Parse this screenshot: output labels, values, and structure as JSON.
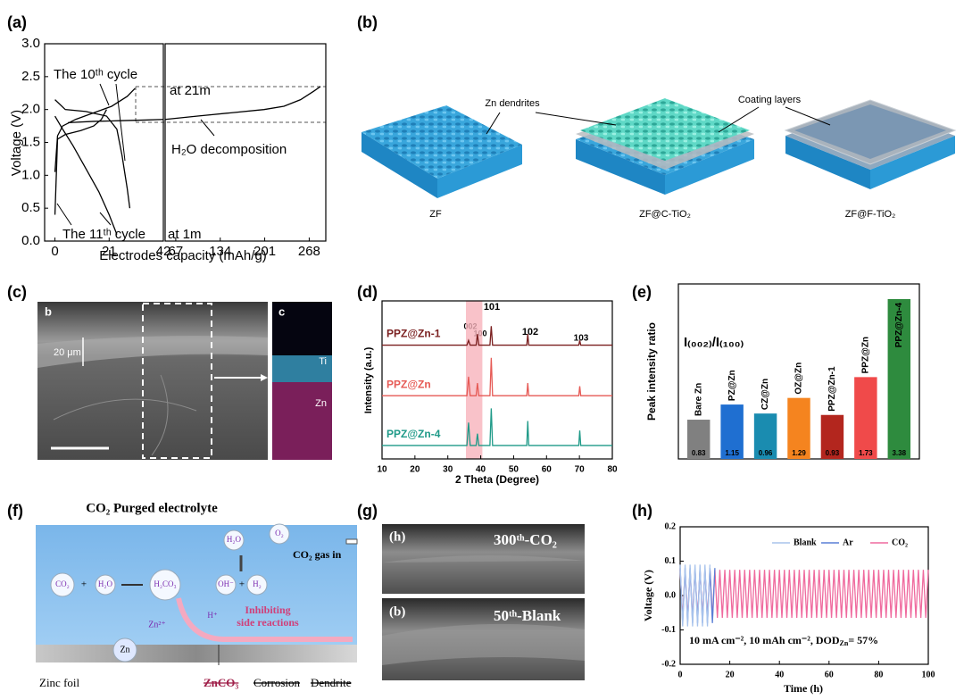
{
  "panel_labels": [
    "(a)",
    "(b)",
    "(c)",
    "(d)",
    "(e)",
    "(f)",
    "(g)",
    "(h)"
  ],
  "panel_b": {
    "labels": [
      "Zn dendrites",
      "Coating layers"
    ],
    "samples": [
      "ZF",
      "ZF@C-TiO₂",
      "ZF@F-TiO₂"
    ]
  },
  "panel_c": {
    "labels": [
      "b",
      "c",
      "20 μm",
      "Ti",
      "Zn"
    ]
  },
  "panel_f": {
    "title": "CO₂ Purged electrolyte",
    "species": [
      "CO₂",
      "H₂O",
      "H₂CO₃",
      "H₂O",
      "O₂",
      "OH⁻",
      "H₂",
      "H⁺",
      "Zn²⁺",
      "Zn"
    ],
    "gas": "CO₂ gas in",
    "note": [
      "Inhibiting",
      "side reactions"
    ],
    "foil": [
      "Zinc foil",
      "ZnCO₃",
      "Corrosion",
      "Dendrite"
    ]
  },
  "panel_g": {
    "labels": [
      "(h)",
      "300ᵗʰ-CO₂",
      "(b)",
      "50ᵗʰ-Blank"
    ]
  },
  "chart_data": [
    {
      "type": "line",
      "xlabel": "Electrodes capacity (mAh/g)",
      "ylabel": "Voltage (V)",
      "xlim": [
        -4,
        42
      ],
      "ylim": [
        0,
        3
      ],
      "xticks": [
        0,
        21,
        42
      ],
      "yticks": [
        {
          "value": 0,
          "label": "0.0"
        },
        0.5,
        {
          "value": 1,
          "label": "1.0"
        },
        1.5,
        {
          "value": 2,
          "label": "2.0"
        },
        2.5,
        {
          "value": 3,
          "label": "3.0"
        }
      ],
      "annotations": [
        "The 10ᵗʰ cycle",
        "at 21m",
        "H₂O decomposition",
        "The 11ᵗʰ cycle",
        "at 1m"
      ],
      "series": [
        {
          "color": "#000000",
          "x": [
            0,
            1,
            3,
            8,
            15,
            22,
            28,
            31
          ],
          "values": [
            1.05,
            1.6,
            1.75,
            1.85,
            1.95,
            2.05,
            2.2,
            2.32
          ]
        },
        {
          "color": "#000000",
          "x": [
            0,
            4,
            12,
            20,
            24,
            26,
            28,
            29
          ],
          "values": [
            2.15,
            2.0,
            1.97,
            1.9,
            1.7,
            1.3,
            0.8,
            0.5
          ]
        },
        {
          "color": "#000000",
          "x": [
            0,
            1,
            4,
            10,
            15,
            18,
            20
          ],
          "values": [
            0.4,
            1.55,
            1.62,
            1.68,
            1.75,
            1.85,
            2.0
          ]
        },
        {
          "color": "#000000",
          "x": [
            0,
            3,
            7,
            12,
            17,
            21,
            24
          ],
          "values": [
            1.9,
            1.7,
            1.45,
            1.1,
            0.75,
            0.4,
            0.1
          ]
        },
        {
          "color": "#000000",
          "x": [
            5,
            15,
            25,
            35,
            42
          ],
          "values": [
            1.8,
            1.82,
            1.83,
            1.84,
            1.85
          ]
        }
      ]
    },
    {
      "type": "line",
      "xlim": [
        51,
        293
      ],
      "ylim": [
        0,
        3
      ],
      "xticks": [
        67,
        134,
        201,
        268
      ],
      "series": [
        {
          "color": "#000000",
          "x": [
            51,
            100,
            150,
            200,
            230,
            255,
            275,
            285
          ],
          "values": [
            1.85,
            1.9,
            1.95,
            2.0,
            2.05,
            2.15,
            2.28,
            2.35
          ]
        }
      ]
    },
    {
      "type": "line",
      "xlabel": "2 Theta (Degree)",
      "ylabel": "Intensity (a.u.)",
      "xlim": [
        10,
        80
      ],
      "ylim": [
        0,
        10
      ],
      "xticks": [
        10,
        20,
        30,
        40,
        50,
        60,
        70,
        80
      ],
      "highlight": [
        35.5,
        40.5
      ],
      "highlight_color": "#f7b3bb",
      "annotations": [
        "002",
        "100",
        "101",
        "102",
        "103"
      ],
      "x": [
        10,
        35.8,
        36.3,
        36.8,
        38.6,
        39.0,
        39.4,
        42.8,
        43.2,
        43.6,
        54.0,
        54.3,
        54.6,
        69.8,
        70.1,
        70.4,
        80
      ],
      "series": [
        {
          "name": "PPZ@Zn-1",
          "color": "#7a1f1f",
          "values": [
            7.2,
            7.2,
            7.5,
            7.2,
            7.2,
            7.9,
            7.2,
            7.2,
            8.4,
            7.2,
            7.2,
            7.9,
            7.2,
            7.2,
            7.5,
            7.2,
            7.2
          ]
        },
        {
          "name": "PPZ@Zn",
          "color": "#e65a55",
          "values": [
            4,
            4,
            5.2,
            4,
            4,
            4.8,
            4,
            4,
            6.4,
            4,
            4,
            4.8,
            4,
            4,
            4.6,
            4,
            4
          ]
        },
        {
          "name": "PPZ@Zn-4",
          "color": "#1f9a88",
          "values": [
            0.85,
            0.85,
            2.3,
            0.85,
            0.85,
            1.6,
            0.85,
            0.85,
            3.2,
            0.85,
            0.85,
            2.4,
            0.85,
            0.85,
            1.8,
            0.85,
            0.85
          ]
        }
      ]
    },
    {
      "type": "bar",
      "ylabel": "Peak intensity ratio",
      "annotation": "I₍₀₀₂₎/I₍₁₀₀₎",
      "ylim": [
        0,
        3.7
      ],
      "categories": [
        "Bare Zn",
        "PZ@Zn",
        "CZ@Zn",
        "OZ@Zn",
        "PPZ@Zn-1",
        "PPZ@Zn",
        "PPZ@Zn-4"
      ],
      "values": [
        0.83,
        1.15,
        0.96,
        1.29,
        0.93,
        1.73,
        3.38
      ],
      "colors": [
        "#808080",
        "#1f6fd1",
        "#1a8cb0",
        "#f5841f",
        "#b3261e",
        "#f04a4a",
        "#2e8b3e"
      ]
    },
    {
      "type": "line",
      "xlabel": "Time (h)",
      "ylabel": "Voltage (V)",
      "xlim": [
        0,
        100
      ],
      "ylim": [
        -0.2,
        0.2
      ],
      "xticks": [
        0,
        20,
        40,
        60,
        80,
        100
      ],
      "yticks": [
        -0.2,
        -0.1,
        {
          "value": 0,
          "label": "0.0"
        },
        0.1,
        0.2
      ],
      "legend": "upper right",
      "annotation_parts": [
        "10 mA cm⁻², 10 mAh cm⁻², DOD",
        "Zn",
        "= 57%"
      ],
      "x": [
        0,
        1,
        2,
        3,
        4,
        5,
        6,
        7,
        8,
        9,
        10,
        11,
        12,
        13,
        14,
        15,
        16,
        17,
        18,
        19,
        20,
        21,
        22,
        23,
        24,
        25,
        26,
        27,
        28,
        29,
        30,
        31,
        32,
        33,
        34,
        35,
        36,
        37,
        38,
        39,
        40,
        41,
        42,
        43,
        44,
        45,
        46,
        47,
        48,
        49,
        50,
        51,
        52,
        53,
        54,
        55,
        56,
        57,
        58,
        59,
        60,
        61,
        62,
        63,
        64,
        65,
        66,
        67,
        68,
        69,
        70,
        71,
        72,
        73,
        74,
        75,
        76,
        77,
        78,
        79,
        80,
        81,
        82,
        83,
        84,
        85,
        86,
        87,
        88,
        89,
        90,
        91,
        92,
        93,
        94,
        95,
        96,
        97,
        98,
        99,
        100
      ],
      "series": [
        {
          "name": "Blank",
          "color": "#a8c3ec",
          "values": [
            0.09,
            -0.09,
            0.09,
            -0.09,
            0.09,
            -0.09,
            0.09,
            -0.09,
            0.09,
            -0.09,
            0.09,
            -0.09,
            0.09,
            null,
            null,
            null,
            null,
            null,
            null,
            null,
            null,
            null,
            null,
            null,
            null,
            null,
            null,
            null,
            null,
            null,
            null,
            null,
            null,
            null,
            null,
            null,
            null,
            null,
            null,
            null,
            null,
            null,
            null,
            null,
            null,
            null,
            null,
            null,
            null,
            null,
            null,
            null,
            null,
            null,
            null,
            null,
            null,
            null,
            null,
            null,
            null,
            null,
            null,
            null,
            null,
            null,
            null,
            null,
            null,
            null,
            null,
            null,
            null,
            null,
            null,
            null,
            null,
            null,
            null,
            null,
            null,
            null,
            null,
            null,
            null,
            null,
            null,
            null,
            null,
            null,
            null,
            null,
            null,
            null,
            null,
            null,
            null,
            null,
            null,
            null,
            null
          ]
        },
        {
          "name": "Ar",
          "color": "#5a7fd6",
          "values": [
            0.08,
            -0.08,
            0.08,
            -0.08,
            0.08,
            -0.08,
            0.08,
            -0.08,
            0.08,
            -0.08,
            0.08,
            -0.08,
            0.08,
            -0.08,
            0.08,
            null,
            null,
            null,
            null,
            null,
            null,
            null,
            null,
            null,
            null,
            null,
            null,
            null,
            null,
            null,
            null,
            null,
            null,
            null,
            null,
            null,
            null,
            null,
            null,
            null,
            null,
            null,
            null,
            null,
            null,
            null,
            null,
            null,
            null,
            null,
            null,
            null,
            null,
            null,
            null,
            null,
            null,
            null,
            null,
            null,
            null,
            null,
            null,
            null,
            null,
            null,
            null,
            null,
            null,
            null,
            null,
            null,
            null,
            null,
            null,
            null,
            null,
            null,
            null,
            null,
            null,
            null,
            null,
            null,
            null,
            null,
            null,
            null,
            null,
            null,
            null,
            null,
            null,
            null,
            null,
            null,
            null,
            null,
            null,
            null,
            null
          ]
        },
        {
          "name": "CO₂",
          "color": "#ef6a9e",
          "values": [
            0.075,
            -0.065,
            0.075,
            -0.065,
            0.075,
            -0.065,
            0.075,
            -0.065,
            0.075,
            -0.065,
            0.075,
            -0.065,
            0.075,
            -0.065,
            0.075,
            -0.065,
            0.075,
            -0.065,
            0.075,
            -0.065,
            0.075,
            -0.065,
            0.075,
            -0.065,
            0.075,
            -0.065,
            0.075,
            -0.065,
            0.075,
            -0.065,
            0.075,
            -0.065,
            0.075,
            -0.065,
            0.075,
            -0.065,
            0.075,
            -0.065,
            0.075,
            -0.065,
            0.075,
            -0.065,
            0.075,
            -0.065,
            0.075,
            -0.065,
            0.075,
            -0.065,
            0.075,
            -0.065,
            0.075,
            -0.065,
            0.075,
            -0.065,
            0.075,
            -0.065,
            0.075,
            -0.065,
            0.075,
            -0.065,
            0.075,
            -0.065,
            0.075,
            -0.065,
            0.075,
            -0.065,
            0.075,
            -0.065,
            0.075,
            -0.065,
            0.075,
            -0.065,
            0.075,
            -0.065,
            0.075,
            -0.065,
            0.075,
            -0.065,
            0.075,
            -0.065,
            0.075,
            -0.065,
            0.075,
            -0.065,
            0.075,
            -0.065,
            0.075,
            -0.065,
            0.075,
            -0.065,
            0.075,
            -0.065,
            0.075,
            -0.065,
            0.075,
            -0.065,
            0.075,
            -0.065,
            0.075,
            -0.065,
            0.075
          ]
        }
      ]
    }
  ]
}
